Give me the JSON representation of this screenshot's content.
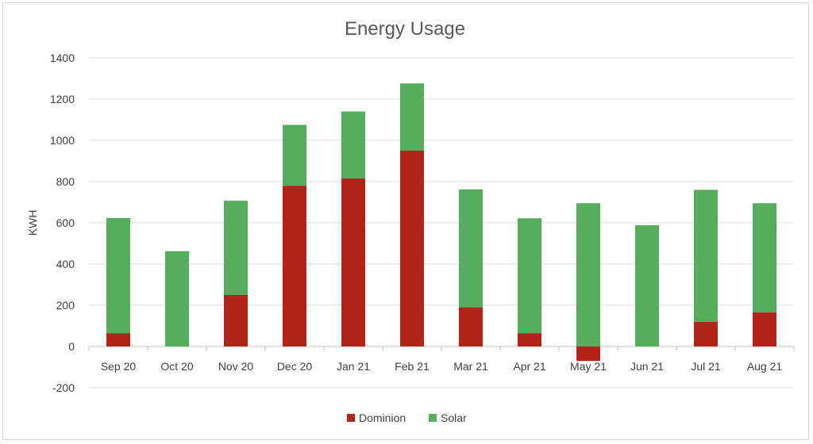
{
  "chart_data": {
    "type": "bar",
    "stacked": true,
    "title": "Energy Usage",
    "xlabel": "",
    "ylabel": "KWH",
    "ylim": [
      -200,
      1400
    ],
    "yticks": [
      1400,
      1200,
      1000,
      800,
      600,
      400,
      200,
      0,
      -200
    ],
    "grid": true,
    "legend_position": "bottom",
    "categories": [
      "Sep 20",
      "Oct 20",
      "Nov 20",
      "Dec 20",
      "Jan 21",
      "Feb 21",
      "Mar 21",
      "Apr 21",
      "May 21",
      "Jun 21",
      "Jul 21",
      "Aug 21"
    ],
    "series": [
      {
        "name": "Dominion",
        "color": "#b22418",
        "values": [
          65,
          0,
          250,
          780,
          815,
          950,
          190,
          65,
          -70,
          0,
          120,
          165
        ]
      },
      {
        "name": "Solar",
        "color": "#55ae5b",
        "values": [
          558,
          462,
          457,
          295,
          325,
          326,
          572,
          557,
          695,
          588,
          640,
          530
        ]
      }
    ]
  }
}
